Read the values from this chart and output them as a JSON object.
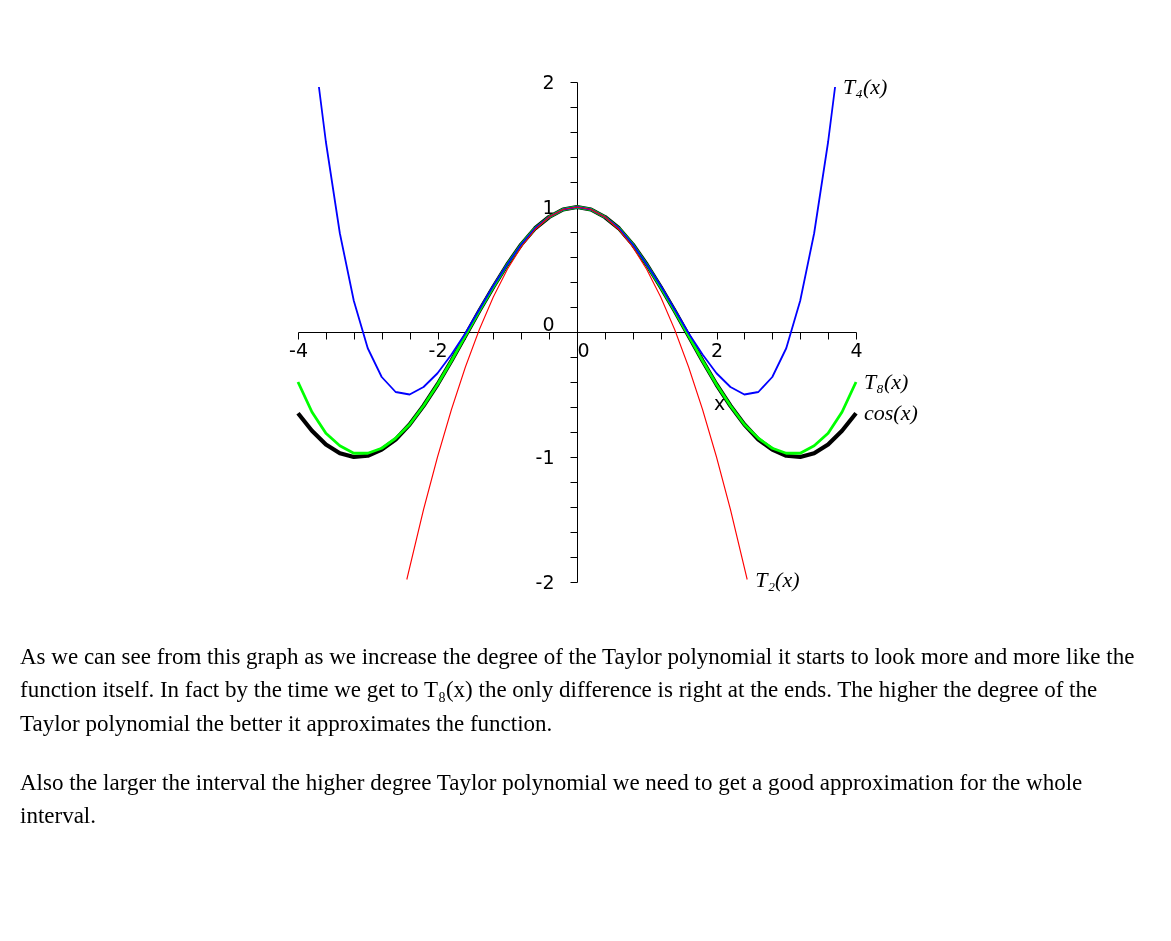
{
  "chart_data": {
    "type": "line",
    "xlabel": "x",
    "xlim": [
      -4,
      4
    ],
    "ylim": [
      -2,
      2
    ],
    "xticks": [
      -4,
      {
        "value": -3.6,
        "label": null
      },
      {
        "value": -3.2,
        "label": null
      },
      {
        "value": -2.8,
        "label": null
      },
      {
        "value": -2.4,
        "label": null
      },
      -2,
      {
        "value": -1.6,
        "label": null
      },
      {
        "value": -1.2,
        "label": null
      },
      {
        "value": -0.8,
        "label": null
      },
      {
        "value": -0.4,
        "label": null
      },
      0,
      {
        "value": 0.4,
        "label": null
      },
      {
        "value": 0.8,
        "label": null
      },
      {
        "value": 1.2,
        "label": null
      },
      {
        "value": 1.6,
        "label": null
      },
      2,
      {
        "value": 2.4,
        "label": null
      },
      {
        "value": 2.8,
        "label": null
      },
      {
        "value": 3.2,
        "label": null
      },
      {
        "value": 3.6,
        "label": null
      },
      4
    ],
    "yticks": [
      -2,
      {
        "value": -1.8,
        "label": null
      },
      {
        "value": -1.6,
        "label": null
      },
      {
        "value": -1.4,
        "label": null
      },
      {
        "value": -1.2,
        "label": null
      },
      -1,
      {
        "value": -0.8,
        "label": null
      },
      {
        "value": -0.6,
        "label": null
      },
      {
        "value": -0.4,
        "label": null
      },
      {
        "value": -0.2,
        "label": null
      },
      0,
      {
        "value": 0.2,
        "label": null
      },
      {
        "value": 0.4,
        "label": null
      },
      {
        "value": 0.6,
        "label": null
      },
      {
        "value": 0.8,
        "label": null
      },
      1,
      {
        "value": 1.2,
        "label": null
      },
      {
        "value": 1.4,
        "label": null
      },
      {
        "value": 1.6,
        "label": null
      },
      {
        "value": 1.8,
        "label": null
      },
      2
    ],
    "series": [
      {
        "name": "T₄(x)",
        "color": "#0000ff",
        "x": [
          -3.7,
          -3.6,
          -3.4,
          -3.2,
          -3,
          -2.8,
          -2.6,
          -2.4,
          -2.2,
          -2,
          -1.8,
          -1.6,
          -1.4,
          -1.2,
          -1,
          -0.8,
          -0.6,
          -0.4,
          -0.2,
          0,
          0.2,
          0.4,
          0.6,
          0.8,
          1,
          1.2,
          1.4,
          1.6,
          1.8,
          2,
          2.2,
          2.4,
          2.6,
          2.8,
          3,
          3.2,
          3.4,
          3.6,
          3.7
        ],
        "values": [
          1.96,
          1.52,
          0.79,
          0.25,
          -0.13,
          -0.36,
          -0.48,
          -0.5,
          -0.44,
          -0.33,
          -0.18,
          -0.01,
          0.18,
          0.37,
          0.54,
          0.7,
          0.83,
          0.92,
          0.98,
          1,
          0.98,
          0.92,
          0.83,
          0.7,
          0.54,
          0.37,
          0.18,
          -0.01,
          -0.18,
          -0.33,
          -0.44,
          -0.5,
          -0.48,
          -0.36,
          -0.13,
          0.25,
          0.79,
          1.52,
          1.96
        ]
      },
      {
        "name": "T₈(x)",
        "color": "#00ff00",
        "x": [
          -4,
          -3.8,
          -3.6,
          -3.4,
          -3.2,
          -3,
          -2.8,
          -2.6,
          -2.4,
          -2.2,
          -2,
          -1.8,
          -1.6,
          -1.4,
          -1.2,
          -1,
          -0.8,
          -0.6,
          -0.4,
          -0.2,
          0,
          0.2,
          0.4,
          0.6,
          0.8,
          1,
          1.2,
          1.4,
          1.6,
          1.8,
          2,
          2.2,
          2.4,
          2.6,
          2.8,
          3,
          3.2,
          3.4,
          3.6,
          3.8,
          4
        ],
        "values": [
          -0.4,
          -0.64,
          -0.81,
          -0.91,
          -0.97,
          -0.97,
          -0.93,
          -0.85,
          -0.74,
          -0.59,
          -0.42,
          -0.23,
          -0.03,
          0.17,
          0.36,
          0.54,
          0.7,
          0.83,
          0.92,
          0.98,
          1,
          0.98,
          0.92,
          0.83,
          0.7,
          0.54,
          0.36,
          0.17,
          -0.03,
          -0.23,
          -0.42,
          -0.59,
          -0.74,
          -0.85,
          -0.93,
          -0.97,
          -0.97,
          -0.91,
          -0.81,
          -0.64,
          -0.4
        ]
      },
      {
        "name": "cos(x)",
        "color": "#000000",
        "x": [
          -4,
          -3.8,
          -3.6,
          -3.4,
          -3.2,
          -3,
          -2.8,
          -2.6,
          -2.4,
          -2.2,
          -2,
          -1.8,
          -1.6,
          -1.4,
          -1.2,
          -1,
          -0.8,
          -0.6,
          -0.4,
          -0.2,
          0,
          0.2,
          0.4,
          0.6,
          0.8,
          1,
          1.2,
          1.4,
          1.6,
          1.8,
          2,
          2.2,
          2.4,
          2.6,
          2.8,
          3,
          3.2,
          3.4,
          3.6,
          3.8,
          4
        ],
        "values": [
          -0.65,
          -0.79,
          -0.9,
          -0.97,
          -1,
          -0.99,
          -0.94,
          -0.86,
          -0.74,
          -0.59,
          -0.42,
          -0.23,
          -0.03,
          0.17,
          0.36,
          0.54,
          0.7,
          0.83,
          0.92,
          0.98,
          1,
          0.98,
          0.92,
          0.83,
          0.7,
          0.54,
          0.36,
          0.17,
          -0.03,
          -0.23,
          -0.42,
          -0.59,
          -0.74,
          -0.86,
          -0.94,
          -0.99,
          -1,
          -0.97,
          -0.9,
          -0.79,
          -0.65
        ]
      },
      {
        "name": "T₂(x)",
        "color": "#ff0000",
        "x": [
          -2.44,
          -2.2,
          -2,
          -1.8,
          -1.6,
          -1.4,
          -1.2,
          -1,
          -0.8,
          -0.6,
          -0.4,
          -0.2,
          0,
          0.2,
          0.4,
          0.6,
          0.8,
          1,
          1.2,
          1.4,
          1.6,
          1.8,
          2,
          2.2,
          2.44
        ],
        "values": [
          -1.98,
          -1.42,
          -1,
          -0.62,
          -0.28,
          0.02,
          0.28,
          0.5,
          0.68,
          0.82,
          0.92,
          0.98,
          1,
          0.98,
          0.92,
          0.82,
          0.68,
          0.5,
          0.28,
          0.02,
          -0.28,
          -0.62,
          -1,
          -1.42,
          -1.98
        ]
      }
    ],
    "annotations": [
      "As we can see from this graph as we increase the degree of the Taylor polynomial it starts to look more and more like the function itself.  In fact by the time we get to T₈(x) the only difference is right at the ends.  The higher the degree of the Taylor polynomial the better it approximates the function.",
      "Also the larger the interval the higher degree Taylor polynomial we need to get a good approximation for the whole interval."
    ]
  }
}
